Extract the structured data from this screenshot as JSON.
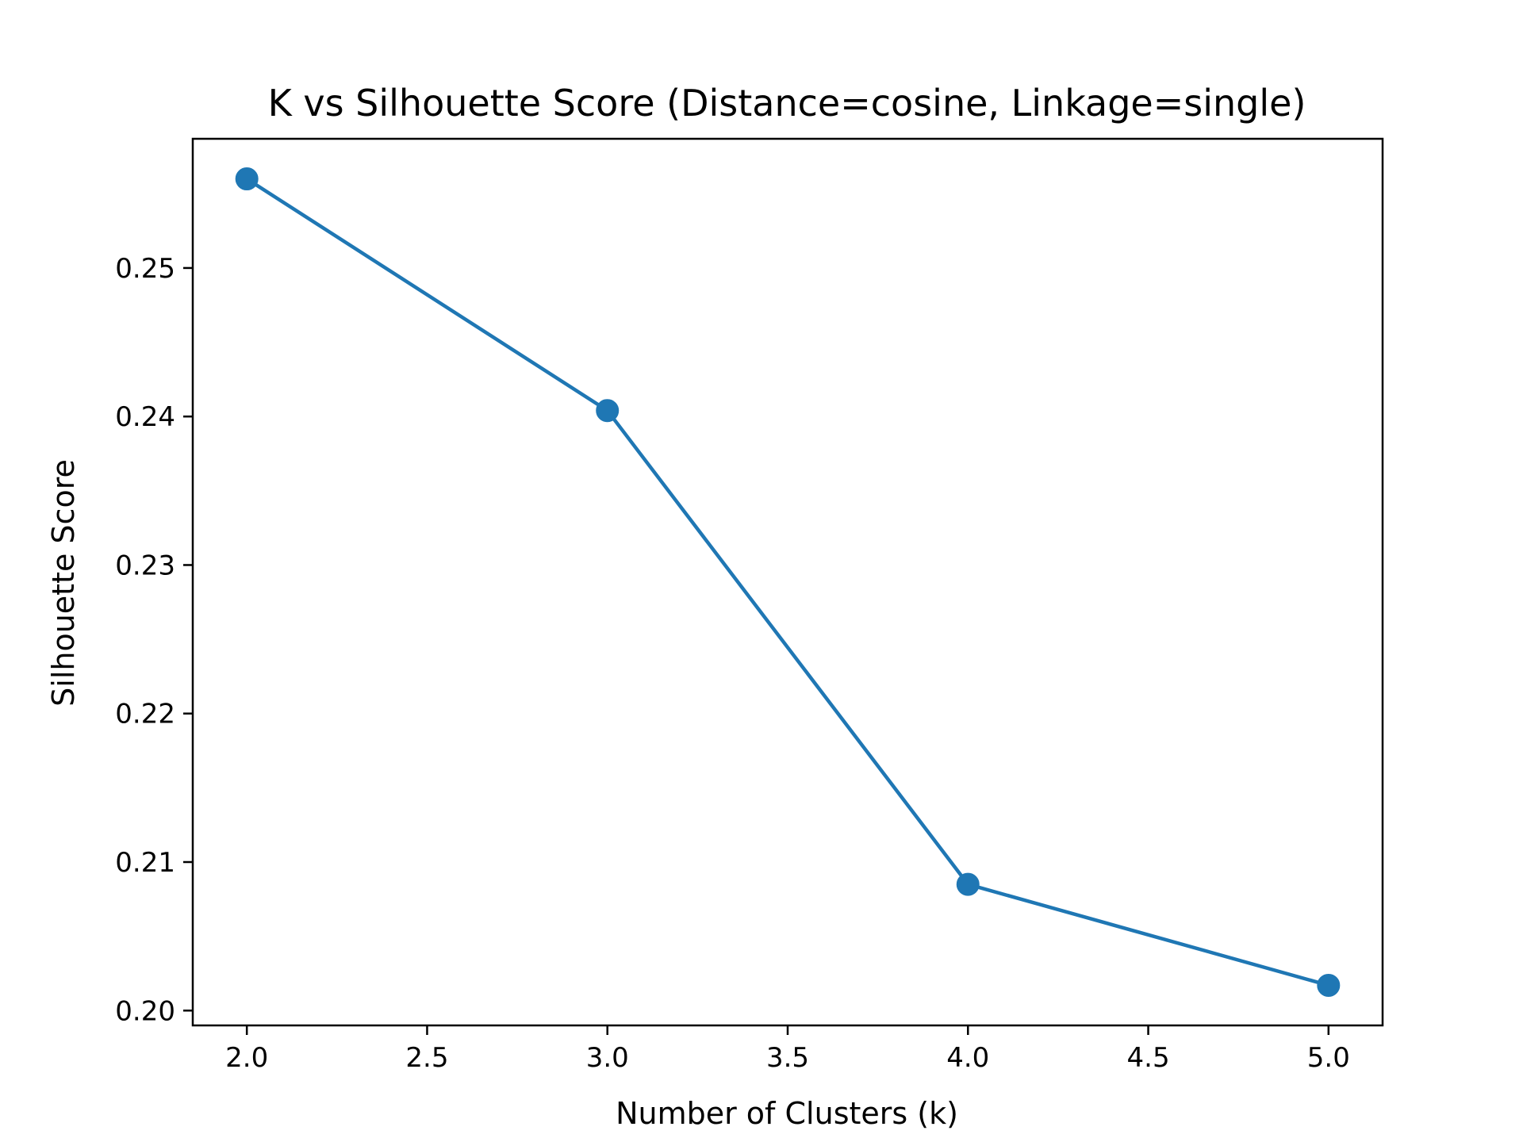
{
  "chart_data": {
    "type": "line",
    "title": "K vs Silhouette Score (Distance=cosine, Linkage=single)",
    "xlabel": "Number of Clusters (k)",
    "ylabel": "Silhouette Score",
    "xlim": [
      1.85,
      5.15
    ],
    "ylim": [
      0.199,
      0.2587
    ],
    "xticks": [
      2.0,
      2.5,
      3.0,
      3.5,
      4.0,
      4.5,
      5.0
    ],
    "xtick_labels": [
      "2.0",
      "2.5",
      "3.0",
      "3.5",
      "4.0",
      "4.5",
      "5.0"
    ],
    "yticks": [
      0.2,
      0.21,
      0.22,
      0.23,
      0.24,
      0.25
    ],
    "ytick_labels": [
      "0.20",
      "0.21",
      "0.22",
      "0.23",
      "0.24",
      "0.25"
    ],
    "grid": false,
    "legend": "none",
    "series": [
      {
        "x": [
          2,
          3,
          4,
          5
        ],
        "y": [
          0.256,
          0.2404,
          0.2085,
          0.2017
        ],
        "color": "#1f77b4",
        "marker": "circle"
      }
    ]
  }
}
